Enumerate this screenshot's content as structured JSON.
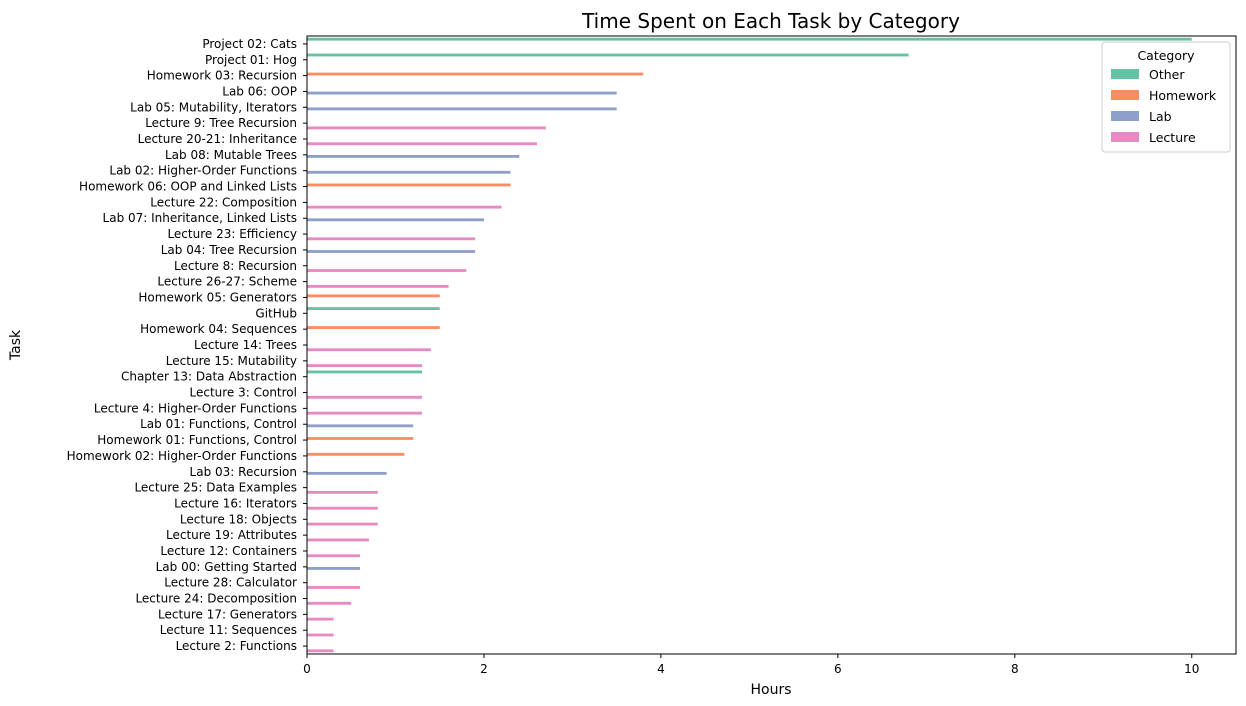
{
  "chart_data": {
    "type": "bar",
    "orientation": "horizontal",
    "title": "Time Spent on Each Task by Category",
    "xlabel": "Hours",
    "ylabel": "Task",
    "xlim": [
      0,
      10.5
    ],
    "xticks": [
      0,
      2,
      4,
      6,
      8,
      10
    ],
    "grid": false,
    "legend": {
      "title": "Category",
      "placement": "top-right",
      "entries": [
        {
          "name": "Other",
          "color": "#66c2a5"
        },
        {
          "name": "Homework",
          "color": "#fc8d62"
        },
        {
          "name": "Lab",
          "color": "#8da0cb"
        },
        {
          "name": "Lecture",
          "color": "#e78ac3"
        }
      ]
    },
    "hue_order": [
      "Other",
      "Homework",
      "Lab",
      "Lecture"
    ],
    "bars": [
      {
        "task": "Project 02: Cats",
        "category": "Other",
        "hours": 10.0
      },
      {
        "task": "Project 01: Hog",
        "category": "Other",
        "hours": 6.8
      },
      {
        "task": "Homework 03: Recursion",
        "category": "Homework",
        "hours": 3.8
      },
      {
        "task": "Lab 06: OOP",
        "category": "Lab",
        "hours": 3.5
      },
      {
        "task": "Lab 05: Mutability, Iterators",
        "category": "Lab",
        "hours": 3.5
      },
      {
        "task": "Lecture 9: Tree Recursion",
        "category": "Lecture",
        "hours": 2.7
      },
      {
        "task": "Lecture 20-21: Inheritance",
        "category": "Lecture",
        "hours": 2.6
      },
      {
        "task": "Lab 08: Mutable Trees",
        "category": "Lab",
        "hours": 2.4
      },
      {
        "task": "Lab 02: Higher-Order Functions",
        "category": "Lab",
        "hours": 2.3
      },
      {
        "task": "Homework 06: OOP and Linked Lists",
        "category": "Homework",
        "hours": 2.3
      },
      {
        "task": "Lecture 22: Composition",
        "category": "Lecture",
        "hours": 2.2
      },
      {
        "task": "Lab 07: Inheritance, Linked Lists",
        "category": "Lab",
        "hours": 2.0
      },
      {
        "task": "Lecture 23: Efficiency",
        "category": "Lecture",
        "hours": 1.9
      },
      {
        "task": "Lab 04: Tree Recursion",
        "category": "Lab",
        "hours": 1.9
      },
      {
        "task": "Lecture 8: Recursion",
        "category": "Lecture",
        "hours": 1.8
      },
      {
        "task": "Lecture 26-27: Scheme",
        "category": "Lecture",
        "hours": 1.6
      },
      {
        "task": "Homework 05: Generators",
        "category": "Homework",
        "hours": 1.5
      },
      {
        "task": "GitHub",
        "category": "Other",
        "hours": 1.5
      },
      {
        "task": "Homework 04: Sequences",
        "category": "Homework",
        "hours": 1.5
      },
      {
        "task": "Lecture 14: Trees",
        "category": "Lecture",
        "hours": 1.4
      },
      {
        "task": "Lecture 15: Mutability",
        "category": "Lecture",
        "hours": 1.3
      },
      {
        "task": "Chapter 13: Data Abstraction",
        "category": "Other",
        "hours": 1.3
      },
      {
        "task": "Lecture 3: Control",
        "category": "Lecture",
        "hours": 1.3
      },
      {
        "task": "Lecture 4: Higher-Order Functions",
        "category": "Lecture",
        "hours": 1.3
      },
      {
        "task": "Lab 01: Functions, Control",
        "category": "Lab",
        "hours": 1.2
      },
      {
        "task": "Homework 01: Functions, Control",
        "category": "Homework",
        "hours": 1.2
      },
      {
        "task": "Homework 02: Higher-Order Functions",
        "category": "Homework",
        "hours": 1.1
      },
      {
        "task": "Lab 03: Recursion",
        "category": "Lab",
        "hours": 0.9
      },
      {
        "task": "Lecture 25: Data Examples",
        "category": "Lecture",
        "hours": 0.8
      },
      {
        "task": "Lecture 16: Iterators",
        "category": "Lecture",
        "hours": 0.8
      },
      {
        "task": "Lecture 18: Objects",
        "category": "Lecture",
        "hours": 0.8
      },
      {
        "task": "Lecture 19: Attributes",
        "category": "Lecture",
        "hours": 0.7
      },
      {
        "task": "Lecture 12: Containers",
        "category": "Lecture",
        "hours": 0.6
      },
      {
        "task": "Lab 00: Getting Started",
        "category": "Lab",
        "hours": 0.6
      },
      {
        "task": "Lecture 28: Calculator",
        "category": "Lecture",
        "hours": 0.6
      },
      {
        "task": "Lecture 24: Decomposition",
        "category": "Lecture",
        "hours": 0.5
      },
      {
        "task": "Lecture 17: Generators",
        "category": "Lecture",
        "hours": 0.3
      },
      {
        "task": "Lecture 11: Sequences",
        "category": "Lecture",
        "hours": 0.3
      },
      {
        "task": "Lecture 2: Functions",
        "category": "Lecture",
        "hours": 0.3
      }
    ]
  }
}
